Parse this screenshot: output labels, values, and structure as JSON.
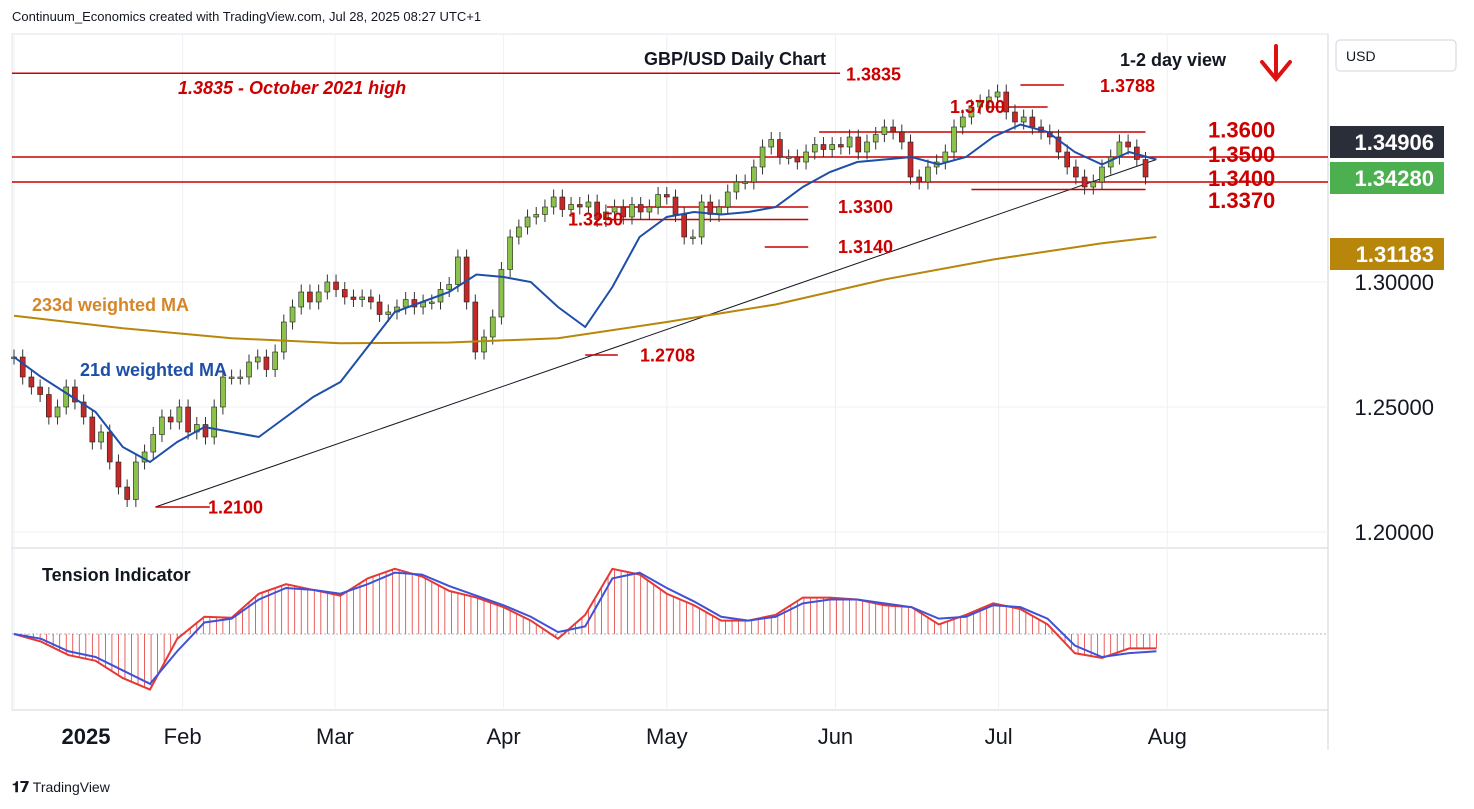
{
  "header": {
    "credit": "Continuum_Economics created with TradingView.com, Jul 28, 2025 08:27 UTC+1"
  },
  "footer": {
    "brand": "TradingView"
  },
  "chart_data": {
    "type": "candlestick",
    "title": "GBP/USD Daily Chart",
    "view_label": "1-2 day view",
    "view_direction": "down",
    "currency": "USD",
    "ylim": [
      1.19,
      1.395
    ],
    "y_ticks": [
      1.2,
      1.25,
      1.3
    ],
    "y_tick_labels": [
      "1.20000",
      "1.25000",
      "1.30000"
    ],
    "x_tick_labels": [
      {
        "label": "2025",
        "day": 0
      },
      {
        "label": "Feb",
        "day": 31
      },
      {
        "label": "Mar",
        "day": 59
      },
      {
        "label": "Apr",
        "day": 90
      },
      {
        "label": "May",
        "day": 120
      },
      {
        "label": "Jun",
        "day": 151
      },
      {
        "label": "Jul",
        "day": 181
      },
      {
        "label": "Aug",
        "day": 212
      }
    ],
    "price_badges": [
      {
        "value": "1.34906",
        "color": "#2a2e39"
      },
      {
        "value": "1.34280",
        "color": "#4caf50"
      },
      {
        "value": "1.31183",
        "color": "#b8860b"
      }
    ],
    "horizontal_levels": [
      {
        "value": 1.3835,
        "label": "1.3835"
      },
      {
        "value": 1.35,
        "label": "1.3500"
      },
      {
        "value": 1.34,
        "label": "1.3400"
      }
    ],
    "short_levels": [
      {
        "value": 1.36,
        "label": "1.3600",
        "from_day": 148,
        "to_day": 208
      },
      {
        "value": 1.337,
        "label": "1.3370",
        "from_day": 176,
        "to_day": 208
      },
      {
        "value": 1.3788,
        "label": "1.3788",
        "from_day": 185,
        "to_day": 193
      },
      {
        "value": 1.37,
        "label": "1.3700",
        "from_day": 179,
        "to_day": 190
      },
      {
        "value": 1.33,
        "label": "1.3300",
        "from_day": 109,
        "to_day": 146
      },
      {
        "value": 1.325,
        "label": "1.3250",
        "from_day": 109,
        "to_day": 146
      },
      {
        "value": 1.314,
        "label": "1.3140",
        "from_day": 138,
        "to_day": 146
      },
      {
        "value": 1.2708,
        "label": "1.2708",
        "from_day": 105,
        "to_day": 111
      },
      {
        "value": 1.21,
        "label": "1.2100",
        "from_day": 26,
        "to_day": 36
      }
    ],
    "annotations": [
      {
        "text": "1.3835 - October 2021 high"
      }
    ],
    "trendline": [
      {
        "day": 26,
        "value": 1.21
      },
      {
        "day": 210,
        "value": 1.349
      }
    ],
    "series": [
      {
        "name": "233d weighted MA",
        "color": "#b8860b",
        "x": [
          0,
          20,
          40,
          60,
          80,
          100,
          120,
          140,
          160,
          180,
          200,
          210
        ],
        "y": [
          1.2865,
          1.2815,
          1.2775,
          1.2755,
          1.2758,
          1.2775,
          1.284,
          1.291,
          1.301,
          1.309,
          1.3155,
          1.318
        ]
      },
      {
        "name": "21d weighted MA",
        "color": "#1e4fa8",
        "x": [
          0,
          5,
          10,
          15,
          20,
          25,
          30,
          35,
          40,
          45,
          50,
          55,
          60,
          65,
          70,
          75,
          80,
          85,
          90,
          95,
          100,
          105,
          110,
          115,
          120,
          125,
          130,
          135,
          140,
          145,
          150,
          155,
          160,
          165,
          170,
          175,
          180,
          185,
          190,
          195,
          200,
          205,
          210
        ],
        "y": [
          1.27,
          1.262,
          1.255,
          1.248,
          1.234,
          1.228,
          1.236,
          1.242,
          1.24,
          1.238,
          1.246,
          1.254,
          1.26,
          1.274,
          1.288,
          1.292,
          1.296,
          1.303,
          1.302,
          1.3,
          1.29,
          1.282,
          1.298,
          1.318,
          1.326,
          1.328,
          1.327,
          1.328,
          1.33,
          1.338,
          1.344,
          1.348,
          1.349,
          1.35,
          1.347,
          1.35,
          1.358,
          1.363,
          1.36,
          1.352,
          1.347,
          1.352,
          1.349
        ]
      }
    ],
    "ohlc_closes": [
      1.27,
      1.262,
      1.258,
      1.255,
      1.246,
      1.25,
      1.258,
      1.252,
      1.246,
      1.236,
      1.24,
      1.228,
      1.218,
      1.213,
      1.228,
      1.232,
      1.239,
      1.246,
      1.244,
      1.25,
      1.24,
      1.243,
      1.238,
      1.25,
      1.262,
      1.262,
      1.262,
      1.268,
      1.27,
      1.265,
      1.272,
      1.284,
      1.29,
      1.296,
      1.292,
      1.296,
      1.3,
      1.297,
      1.294,
      1.293,
      1.294,
      1.292,
      1.287,
      1.288,
      1.29,
      1.293,
      1.29,
      1.292,
      1.292,
      1.297,
      1.299,
      1.31,
      1.292,
      1.272,
      1.278,
      1.286,
      1.305,
      1.318,
      1.322,
      1.326,
      1.327,
      1.33,
      1.334,
      1.329,
      1.331,
      1.33,
      1.332,
      1.325,
      1.328,
      1.33,
      1.326,
      1.331,
      1.328,
      1.33,
      1.335,
      1.334,
      1.327,
      1.318,
      1.318,
      1.332,
      1.327,
      1.33,
      1.336,
      1.34,
      1.34,
      1.346,
      1.354,
      1.357,
      1.35,
      1.35,
      1.348,
      1.352,
      1.355,
      1.353,
      1.355,
      1.354,
      1.358,
      1.352,
      1.356,
      1.359,
      1.362,
      1.36,
      1.356,
      1.342,
      1.34,
      1.346,
      1.348,
      1.352,
      1.362,
      1.366,
      1.37,
      1.372,
      1.374,
      1.376,
      1.368,
      1.364,
      1.366,
      1.362,
      1.36,
      1.358,
      1.352,
      1.346,
      1.342,
      1.338,
      1.34,
      1.346,
      1.35,
      1.356,
      1.354,
      1.349,
      1.342
    ],
    "tension_indicator": {
      "name": "Tension Indicator",
      "x": [
        0,
        5,
        10,
        15,
        20,
        25,
        30,
        35,
        40,
        45,
        50,
        55,
        60,
        65,
        70,
        75,
        80,
        85,
        90,
        95,
        100,
        105,
        110,
        115,
        120,
        125,
        130,
        135,
        140,
        145,
        150,
        155,
        160,
        165,
        170,
        175,
        180,
        185,
        190,
        195,
        200,
        205,
        210
      ],
      "fast": [
        0,
        -8,
        -22,
        -28,
        -46,
        -58,
        -5,
        18,
        17,
        42,
        52,
        46,
        40,
        58,
        68,
        60,
        45,
        38,
        28,
        14,
        -5,
        20,
        68,
        62,
        42,
        30,
        14,
        14,
        20,
        38,
        38,
        36,
        30,
        28,
        10,
        20,
        32,
        26,
        10,
        -20,
        -25,
        -15,
        -15
      ],
      "slow": [
        0,
        -5,
        -18,
        -24,
        -38,
        -52,
        -18,
        12,
        16,
        36,
        48,
        46,
        42,
        52,
        64,
        62,
        50,
        40,
        30,
        18,
        2,
        8,
        58,
        64,
        48,
        34,
        18,
        14,
        18,
        32,
        36,
        36,
        32,
        28,
        16,
        18,
        30,
        28,
        16,
        -12,
        -24,
        -20,
        -18
      ],
      "ylim": [
        -62,
        72
      ]
    }
  }
}
